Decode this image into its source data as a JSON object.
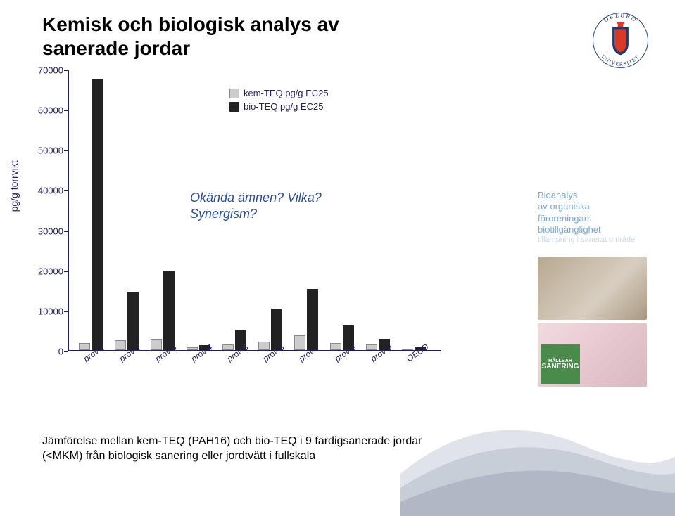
{
  "title_line1": "Kemisk och biologisk analys av",
  "title_line2": "sanerade jordar",
  "logo": {
    "top_text": "ÖREBRO",
    "bottom_text": "UNIVERSITET",
    "shield_primary": "#1f3a6e",
    "shield_accent": "#d83a2a"
  },
  "chart": {
    "type": "bar",
    "y_label": "pg/g torrvikt",
    "ylim": [
      0,
      70000
    ],
    "ytick_step": 10000,
    "yticks": [
      0,
      10000,
      20000,
      30000,
      40000,
      50000,
      60000,
      70000
    ],
    "axis_color": "#1f1f5c",
    "background_color": "#ffffff",
    "bar_colors": {
      "kem": "#cccccc",
      "bio": "#222222"
    },
    "categories": [
      "prov 1",
      "prov 2",
      "prov 3",
      "prov 4",
      "prov 5",
      "prov 6",
      "prov 7",
      "prov 8",
      "prov 9",
      "OECD"
    ],
    "series": {
      "kem": [
        1800,
        2500,
        2800,
        700,
        1400,
        2100,
        3600,
        1800,
        1400,
        300
      ],
      "bio": [
        67500,
        14500,
        19800,
        1200,
        5100,
        10300,
        15300,
        6100,
        2800,
        900
      ]
    },
    "legend": {
      "kem_label": "kem-TEQ pg/g EC25",
      "bio_label": "bio-TEQ pg/g EC25"
    },
    "annotation_line1": "Okända ämnen? Vilka?",
    "annotation_line2": "Synergism?",
    "annotation_color": "#2a4c9c"
  },
  "side": {
    "line1": "Bioanalys",
    "line2": "av organiska",
    "line3": "föroreningars",
    "line4": "biotillgänglighet",
    "fade": "tillämpning i sanerat område",
    "color": "#7aa8d6",
    "badge_small": "HÅLLBAR",
    "badge_big": "SANERING"
  },
  "caption_line1": "Jämförelse mellan kem-TEQ (PAH16) och bio-TEQ i 9 färdigsanerade jordar",
  "caption_line2": "(<MKM) från biologisk sanering eller jordtvätt i fullskala",
  "wave_colors": [
    "#e0e4ea",
    "#c8ced8",
    "#b0b8c6"
  ]
}
